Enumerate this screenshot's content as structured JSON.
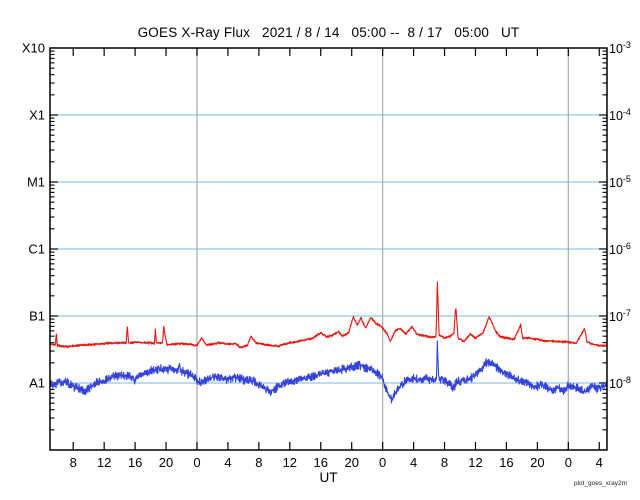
{
  "title": "GOES X-Ray Flux   2021 / 8 / 14   05:00 --  8 / 17   05:00   UT",
  "watermark": "plot_goes_xray2m",
  "colors": {
    "background": "#ffffff",
    "frame": "#000000",
    "gridline": "#74b8f0",
    "day_boundary": "#a9a9a9",
    "long_channel": "#e8150c",
    "short_channel": "#3544d8"
  },
  "chart_data": {
    "type": "line",
    "title": "GOES X-Ray Flux   2021 / 8 / 14   05:00 -- 8 / 17   05:00   UT",
    "xlabel": "UT",
    "x_axis": {
      "range_hours": [
        0,
        72
      ],
      "start_label": "2021 / 8 / 14  05:00 UT",
      "end_label": "8 / 17  05:00 UT",
      "tick_interval_hours": 4,
      "tick_hours": [
        3,
        7,
        11,
        15,
        19,
        23,
        27,
        31,
        35,
        39,
        43,
        47,
        51,
        55,
        59,
        63,
        67,
        71
      ],
      "tick_labels": [
        "8",
        "12",
        "16",
        "20",
        "0",
        "4",
        "8",
        "12",
        "16",
        "20",
        "0",
        "4",
        "8",
        "12",
        "16",
        "20",
        "0",
        "4"
      ],
      "day_boundary_hours": [
        19,
        43,
        67
      ]
    },
    "y_axis": {
      "scale": "log",
      "units": "W/m^2",
      "log_range": [
        -9,
        -3
      ],
      "gridline_logs": [
        -4,
        -5,
        -6,
        -7,
        -8
      ],
      "left_labels": [
        {
          "text": "X10",
          "log": -3
        },
        {
          "text": "X1",
          "log": -4
        },
        {
          "text": "M1",
          "log": -5
        },
        {
          "text": "C1",
          "log": -6
        },
        {
          "text": "B1",
          "log": -7
        },
        {
          "text": "A1",
          "log": -8
        }
      ],
      "right_labels": [
        {
          "base": "10",
          "exp": "-3",
          "log": -3
        },
        {
          "base": "10",
          "exp": "-4",
          "log": -4
        },
        {
          "base": "10",
          "exp": "-5",
          "log": -5
        },
        {
          "base": "10",
          "exp": "-6",
          "log": -6
        },
        {
          "base": "10",
          "exp": "-7",
          "log": -7
        },
        {
          "base": "10",
          "exp": "-8",
          "log": -8
        }
      ]
    },
    "series": [
      {
        "name": "xray-long-wavelength",
        "color": "#e8150c",
        "noise_log_amplitude": 0.013,
        "seed": 7,
        "points_format": [
          "hours_from_start",
          "log10_flux"
        ],
        "points": [
          [
            0,
            -7.42
          ],
          [
            0.7,
            -7.43
          ],
          [
            0.82,
            -7.26
          ],
          [
            0.95,
            -7.44
          ],
          [
            2,
            -7.46
          ],
          [
            3.5,
            -7.44
          ],
          [
            5,
            -7.43
          ],
          [
            7,
            -7.41
          ],
          [
            9,
            -7.4
          ],
          [
            9.85,
            -7.4
          ],
          [
            10.0,
            -7.14
          ],
          [
            10.15,
            -7.4
          ],
          [
            11,
            -7.39
          ],
          [
            12.5,
            -7.4
          ],
          [
            13.5,
            -7.41
          ],
          [
            13.62,
            -7.19
          ],
          [
            13.75,
            -7.4
          ],
          [
            14.55,
            -7.4
          ],
          [
            14.7,
            -7.15
          ],
          [
            14.95,
            -7.33
          ],
          [
            15.15,
            -7.43
          ],
          [
            16,
            -7.42
          ],
          [
            17,
            -7.41
          ],
          [
            18,
            -7.42
          ],
          [
            19,
            -7.44
          ],
          [
            19.6,
            -7.33
          ],
          [
            20.2,
            -7.43
          ],
          [
            21,
            -7.42
          ],
          [
            22,
            -7.4
          ],
          [
            23,
            -7.42
          ],
          [
            24,
            -7.41
          ],
          [
            24.6,
            -7.47
          ],
          [
            25.5,
            -7.44
          ],
          [
            26,
            -7.3
          ],
          [
            26.6,
            -7.4
          ],
          [
            28,
            -7.43
          ],
          [
            29.5,
            -7.45
          ],
          [
            31,
            -7.4
          ],
          [
            32.5,
            -7.37
          ],
          [
            34,
            -7.33
          ],
          [
            35,
            -7.25
          ],
          [
            35.7,
            -7.31
          ],
          [
            36.5,
            -7.29
          ],
          [
            37.3,
            -7.23
          ],
          [
            37.8,
            -7.3
          ],
          [
            38.6,
            -7.25
          ],
          [
            39.2,
            -7.01
          ],
          [
            39.7,
            -7.14
          ],
          [
            40.2,
            -7.03
          ],
          [
            40.8,
            -7.18
          ],
          [
            41.5,
            -7.02
          ],
          [
            42.2,
            -7.12
          ],
          [
            42.8,
            -7.15
          ],
          [
            43.5,
            -7.25
          ],
          [
            44,
            -7.38
          ],
          [
            44.6,
            -7.22
          ],
          [
            45.3,
            -7.19
          ],
          [
            46,
            -7.27
          ],
          [
            46.8,
            -7.16
          ],
          [
            47.5,
            -7.28
          ],
          [
            48.5,
            -7.3
          ],
          [
            49.3,
            -7.32
          ],
          [
            49.9,
            -7.31
          ],
          [
            50.07,
            -6.49
          ],
          [
            50.3,
            -7.28
          ],
          [
            51,
            -7.33
          ],
          [
            51.8,
            -7.3
          ],
          [
            52.2,
            -7.26
          ],
          [
            52.45,
            -6.86
          ],
          [
            52.75,
            -7.33
          ],
          [
            53.5,
            -7.38
          ],
          [
            54.3,
            -7.27
          ],
          [
            55,
            -7.33
          ],
          [
            56,
            -7.25
          ],
          [
            56.75,
            -7.01
          ],
          [
            57.1,
            -7.09
          ],
          [
            57.6,
            -7.23
          ],
          [
            58.2,
            -7.31
          ],
          [
            59,
            -7.33
          ],
          [
            60,
            -7.35
          ],
          [
            60.85,
            -7.13
          ],
          [
            61.1,
            -7.33
          ],
          [
            62,
            -7.33
          ],
          [
            63,
            -7.35
          ],
          [
            64,
            -7.37
          ],
          [
            65.5,
            -7.38
          ],
          [
            67,
            -7.39
          ],
          [
            68,
            -7.41
          ],
          [
            69.1,
            -7.19
          ],
          [
            69.4,
            -7.38
          ],
          [
            70,
            -7.42
          ],
          [
            71,
            -7.44
          ],
          [
            72,
            -7.44
          ]
        ]
      },
      {
        "name": "xray-short-wavelength",
        "color": "#3544d8",
        "noise_log_amplitude": 0.05,
        "seed": 13,
        "points_format": [
          "hours_from_start",
          "log10_flux"
        ],
        "points": [
          [
            0,
            -7.99
          ],
          [
            0.5,
            -8.04
          ],
          [
            1,
            -8.0
          ],
          [
            2,
            -7.98
          ],
          [
            3,
            -8.05
          ],
          [
            3.8,
            -8.08
          ],
          [
            4.5,
            -8.13
          ],
          [
            5.2,
            -8.06
          ],
          [
            6,
            -8.0
          ],
          [
            6.5,
            -7.99
          ],
          [
            7.5,
            -7.93
          ],
          [
            8.5,
            -7.89
          ],
          [
            9.5,
            -7.88
          ],
          [
            10.5,
            -7.9
          ],
          [
            11,
            -7.97
          ],
          [
            11.5,
            -7.9
          ],
          [
            12.3,
            -7.87
          ],
          [
            13,
            -7.82
          ],
          [
            14.2,
            -7.79
          ],
          [
            15,
            -7.81
          ],
          [
            15.8,
            -7.79
          ],
          [
            16.55,
            -7.81
          ],
          [
            16.7,
            -7.7
          ],
          [
            16.85,
            -7.81
          ],
          [
            17.5,
            -7.84
          ],
          [
            18.3,
            -7.88
          ],
          [
            19,
            -7.96
          ],
          [
            19.5,
            -7.98
          ],
          [
            20.5,
            -7.93
          ],
          [
            21.3,
            -7.9
          ],
          [
            22,
            -7.92
          ],
          [
            23,
            -7.94
          ],
          [
            24,
            -7.93
          ],
          [
            25,
            -7.95
          ],
          [
            25.8,
            -7.96
          ],
          [
            26.5,
            -7.98
          ],
          [
            27.5,
            -8.05
          ],
          [
            28.5,
            -8.13
          ],
          [
            29.2,
            -8.08
          ],
          [
            30,
            -8.03
          ],
          [
            30.8,
            -7.99
          ],
          [
            31.8,
            -7.96
          ],
          [
            33,
            -7.93
          ],
          [
            34.2,
            -7.89
          ],
          [
            35.5,
            -7.85
          ],
          [
            36.5,
            -7.82
          ],
          [
            37.8,
            -7.79
          ],
          [
            39,
            -7.76
          ],
          [
            40,
            -7.73
          ],
          [
            40.6,
            -7.76
          ],
          [
            41.5,
            -7.8
          ],
          [
            42.3,
            -7.86
          ],
          [
            42.9,
            -7.92
          ],
          [
            43.3,
            -8.05
          ],
          [
            43.8,
            -8.2
          ],
          [
            44.3,
            -8.24
          ],
          [
            44.8,
            -8.12
          ],
          [
            45.3,
            -8.03
          ],
          [
            46,
            -7.97
          ],
          [
            47,
            -7.93
          ],
          [
            47.8,
            -7.95
          ],
          [
            48.6,
            -7.92
          ],
          [
            49.4,
            -7.95
          ],
          [
            49.95,
            -7.94
          ],
          [
            50.07,
            -7.43
          ],
          [
            50.25,
            -7.93
          ],
          [
            51,
            -7.97
          ],
          [
            51.8,
            -8.02
          ],
          [
            52.1,
            -8.08
          ],
          [
            52.6,
            -7.99
          ],
          [
            53.5,
            -7.95
          ],
          [
            54.5,
            -7.93
          ],
          [
            55.3,
            -7.85
          ],
          [
            56,
            -7.75
          ],
          [
            56.5,
            -7.69
          ],
          [
            57,
            -7.71
          ],
          [
            57.7,
            -7.76
          ],
          [
            58.5,
            -7.83
          ],
          [
            59.3,
            -7.89
          ],
          [
            60.2,
            -7.94
          ],
          [
            61,
            -7.97
          ],
          [
            62,
            -8.02
          ],
          [
            62.8,
            -8.06
          ],
          [
            63.5,
            -8.02
          ],
          [
            64.3,
            -8.06
          ],
          [
            65,
            -8.12
          ],
          [
            65.7,
            -8.06
          ],
          [
            66.4,
            -8.12
          ],
          [
            67,
            -8.04
          ],
          [
            67.7,
            -8.07
          ],
          [
            68.5,
            -8.1
          ],
          [
            69.3,
            -8.12
          ],
          [
            70,
            -8.05
          ],
          [
            70.7,
            -8.09
          ],
          [
            71.4,
            -8.05
          ],
          [
            72,
            -8.01
          ]
        ]
      }
    ]
  }
}
